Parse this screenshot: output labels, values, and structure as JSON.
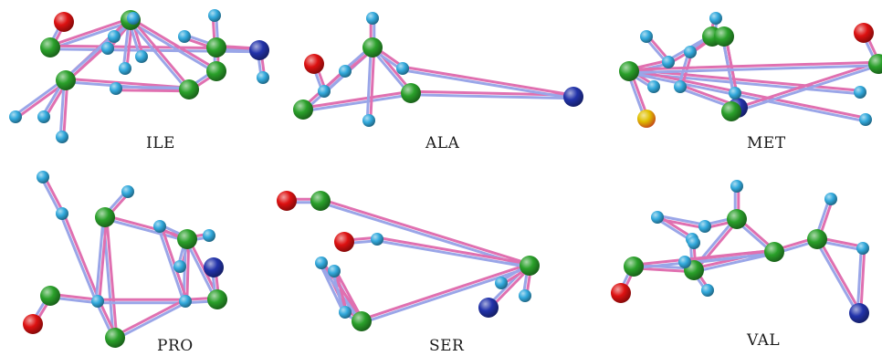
{
  "figure": {
    "panels": [
      {
        "id": "ile",
        "label": "ILE"
      },
      {
        "id": "ala",
        "label": "ALA"
      },
      {
        "id": "met",
        "label": "MET"
      },
      {
        "id": "pro",
        "label": "PRO"
      },
      {
        "id": "ser",
        "label": "SER"
      },
      {
        "id": "val",
        "label": "VAL"
      }
    ],
    "atom_colors": {
      "carbon": "#2aa02a",
      "hydrogen": "#33aadd",
      "oxygen": "#dd1111",
      "nitrogen": "#2233aa",
      "sulfur": "#e0c000"
    },
    "bond_colors": {
      "pink": "#e070b0",
      "lavender": "#9aa6e8"
    }
  }
}
